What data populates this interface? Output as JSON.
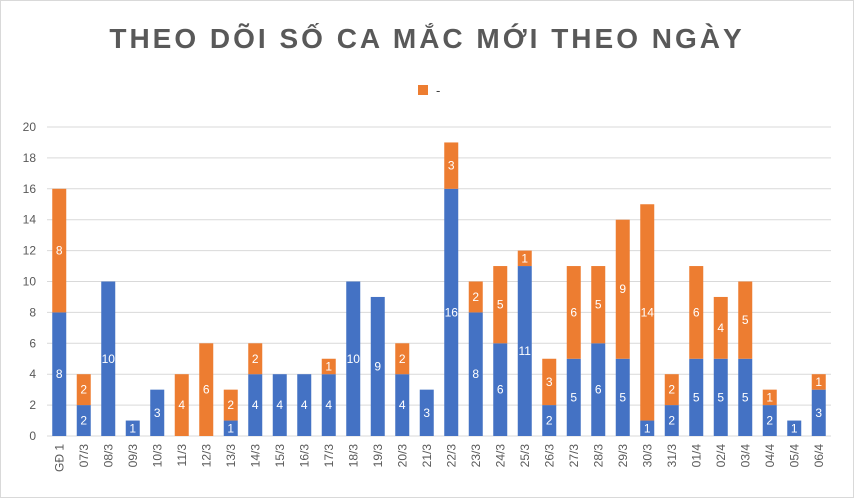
{
  "colors": {
    "series1": "#4472C4",
    "series2": "#ED7D31",
    "grid": "#D9D9D9",
    "text": "#595959"
  },
  "chart_data": {
    "type": "bar",
    "stacked": true,
    "title": "THEO DÕI SỐ CA MẮC MỚI THEO NGÀY",
    "xlabel": "",
    "ylabel": "",
    "ylim": [
      0,
      20
    ],
    "yticks": [
      0,
      2,
      4,
      6,
      8,
      10,
      12,
      14,
      16,
      18,
      20
    ],
    "grid": "horizontal",
    "legend_position": "top",
    "categories": [
      "GĐ 1",
      "07/3",
      "08/3",
      "09/3",
      "10/3",
      "11/3",
      "12/3",
      "13/3",
      "14/3",
      "15/3",
      "16/3",
      "17/3",
      "18/3",
      "19/3",
      "20/3",
      "21/3",
      "22/3",
      "23/3",
      "24/3",
      "25/3",
      "26/3",
      "27/3",
      "28/3",
      "29/3",
      "30/3",
      "31/3",
      "01/4",
      "02/4",
      "03/4",
      "04/4",
      "05/4",
      "06/4"
    ],
    "series": [
      {
        "name": "",
        "color": "#4472C4",
        "values": [
          8,
          2,
          10,
          1,
          3,
          0,
          0,
          1,
          4,
          4,
          4,
          4,
          10,
          9,
          4,
          3,
          16,
          8,
          6,
          11,
          2,
          5,
          6,
          5,
          1,
          2,
          5,
          5,
          5,
          2,
          1,
          3
        ]
      },
      {
        "name": "-",
        "color": "#ED7D31",
        "values": [
          8,
          2,
          0,
          0,
          0,
          4,
          6,
          2,
          2,
          0,
          0,
          1,
          0,
          0,
          2,
          0,
          3,
          2,
          5,
          1,
          3,
          6,
          5,
          9,
          14,
          2,
          6,
          4,
          5,
          1,
          0,
          1
        ]
      }
    ]
  }
}
